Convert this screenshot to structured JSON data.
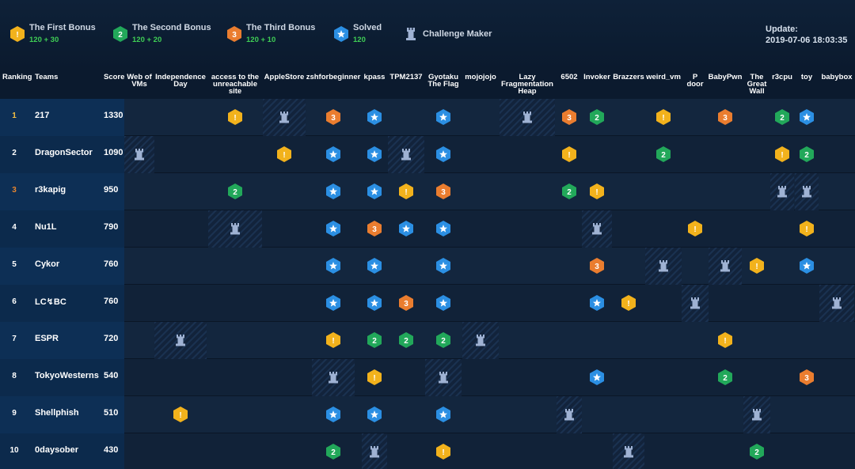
{
  "legend": [
    {
      "title": "The First Bonus",
      "sub": "120 + 30",
      "icon": "first"
    },
    {
      "title": "The Second Bonus",
      "sub": "120 + 20",
      "icon": "second"
    },
    {
      "title": "The Third Bonus",
      "sub": "120 + 10",
      "icon": "third"
    },
    {
      "title": "Solved",
      "sub": "120",
      "icon": "solved"
    },
    {
      "title": "Challenge Maker",
      "sub": "",
      "icon": "maker"
    }
  ],
  "update": {
    "label": "Update:",
    "time": "2019-07-06 18:03:35"
  },
  "headers": {
    "ranking": "Ranking",
    "teams": "Teams",
    "score": "Score"
  },
  "challenges": [
    {
      "name": "Web of\nVMs"
    },
    {
      "name": "Independence\nDay"
    },
    {
      "name": "access to the\nunreachable\nsite"
    },
    {
      "name": "AppleStore"
    },
    {
      "name": "zshforbeginner"
    },
    {
      "name": "kpass"
    },
    {
      "name": "TPM2137"
    },
    {
      "name": "Gyotaku\nThe Flag"
    },
    {
      "name": "mojojojo"
    },
    {
      "name": "Lazy\nFragmentation\nHeap"
    },
    {
      "name": "6502"
    },
    {
      "name": "Invoker"
    },
    {
      "name": "Brazzers"
    },
    {
      "name": "weird_vm"
    },
    {
      "name": "P\ndoor"
    },
    {
      "name": "BabyPwn"
    },
    {
      "name": "The\nGreat\nWall"
    },
    {
      "name": "r3cpu"
    },
    {
      "name": "toy"
    },
    {
      "name": "babybox"
    }
  ],
  "teams": [
    {
      "rank": "1",
      "name": "217",
      "score": "1330",
      "cells": [
        "",
        "",
        "F",
        "M",
        "T",
        "S",
        "",
        "S",
        "",
        "M",
        "T",
        "Q",
        "",
        "F",
        "",
        "T",
        "",
        "Q",
        "S",
        ""
      ]
    },
    {
      "rank": "2",
      "name": "DragonSector",
      "score": "1090",
      "cells": [
        "M",
        "",
        "",
        "F",
        "S",
        "S",
        "M",
        "S",
        "",
        "",
        "F",
        "",
        "",
        "Q",
        "",
        "",
        "",
        "F",
        "Q",
        ""
      ]
    },
    {
      "rank": "3",
      "name": "r3kapig",
      "score": "950",
      "cells": [
        "",
        "",
        "Q",
        "",
        "S",
        "S",
        "F",
        "T",
        "",
        "",
        "Q",
        "F",
        "",
        "",
        "",
        "",
        "",
        "M",
        "M",
        ""
      ]
    },
    {
      "rank": "4",
      "name": "Nu1L",
      "score": "790",
      "cells": [
        "",
        "",
        "M",
        "",
        "S",
        "T",
        "S",
        "S",
        "",
        "",
        "",
        "M",
        "",
        "",
        "F",
        "",
        "",
        "",
        "F",
        ""
      ]
    },
    {
      "rank": "5",
      "name": "Cykor",
      "score": "760",
      "cells": [
        "",
        "",
        "",
        "",
        "S",
        "S",
        "",
        "S",
        "",
        "",
        "",
        "T",
        "",
        "M",
        "",
        "M",
        "F",
        "",
        "S",
        ""
      ]
    },
    {
      "rank": "6",
      "name": "LC↯BC",
      "score": "760",
      "cells": [
        "",
        "",
        "",
        "",
        "S",
        "S",
        "T",
        "S",
        "",
        "",
        "",
        "S",
        "F",
        "",
        "M",
        "",
        "",
        "",
        "",
        "M"
      ]
    },
    {
      "rank": "7",
      "name": "ESPR",
      "score": "720",
      "cells": [
        "",
        "M",
        "",
        "",
        "F",
        "Q",
        "Q",
        "Q",
        "M",
        "",
        "",
        "",
        "",
        "",
        "",
        "F",
        "",
        "",
        "",
        ""
      ]
    },
    {
      "rank": "8",
      "name": "TokyoWesterns",
      "score": "540",
      "cells": [
        "",
        "",
        "",
        "",
        "M",
        "F",
        "",
        "M",
        "",
        "",
        "",
        "S",
        "",
        "",
        "",
        "Q",
        "",
        "",
        "T",
        ""
      ]
    },
    {
      "rank": "9",
      "name": "Shellphish",
      "score": "510",
      "cells": [
        "",
        "F",
        "",
        "",
        "S",
        "S",
        "",
        "S",
        "",
        "",
        "M",
        "",
        "",
        "",
        "",
        "",
        "M",
        "",
        "",
        ""
      ]
    },
    {
      "rank": "10",
      "name": "0daysober",
      "score": "430",
      "cells": [
        "",
        "",
        "",
        "",
        "Q",
        "M",
        "",
        "F",
        "",
        "",
        "",
        "",
        "M",
        "",
        "",
        "",
        "Q",
        "",
        "",
        ""
      ]
    }
  ],
  "colors": {
    "first": "#f2b21c",
    "second": "#22a85a",
    "third": "#ea7d2f",
    "solved": "#2b8fe3",
    "maker": "#9fb2d3",
    "rank_gold": "#f5c043",
    "rank_bronze": "#e9862f"
  }
}
